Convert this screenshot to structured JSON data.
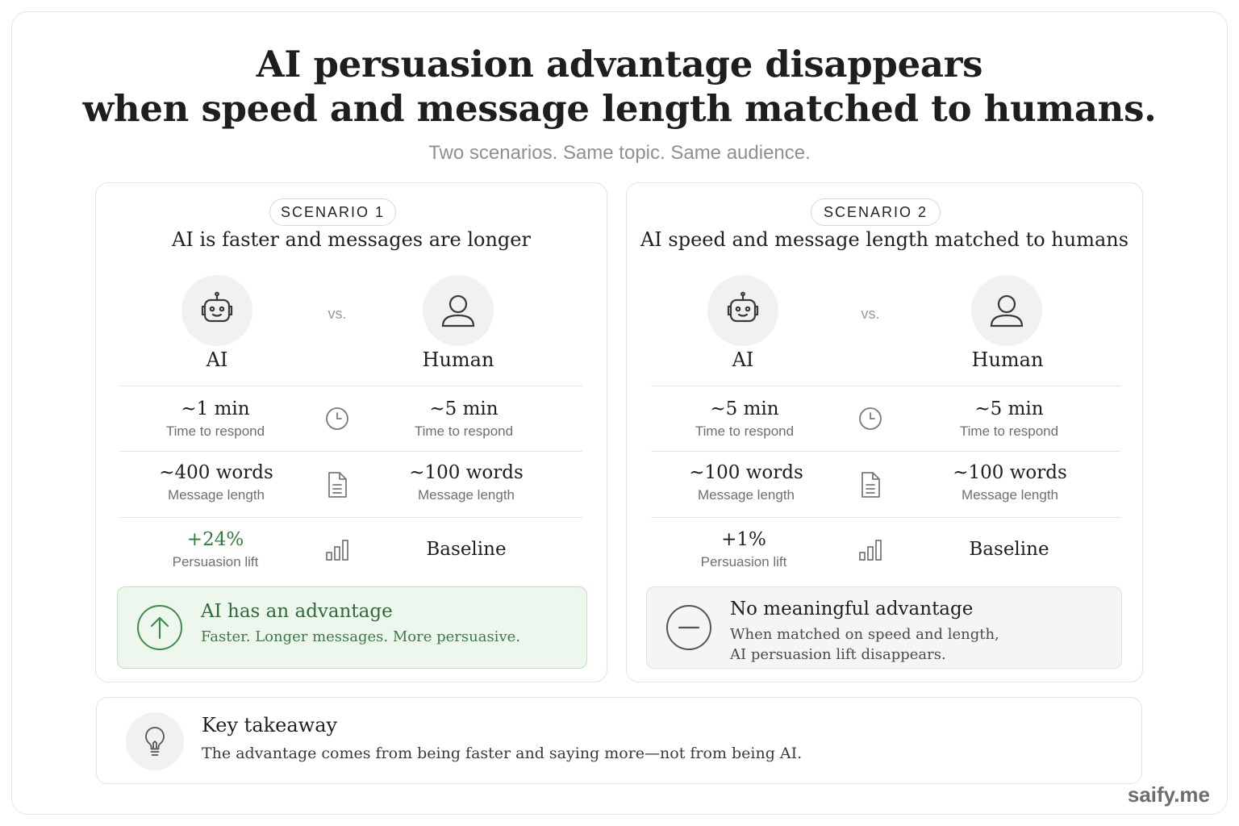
{
  "title": {
    "line1": "AI persuasion advantage disappears",
    "line2": "when speed and message length matched to humans."
  },
  "subtitle": "Two scenarios. Same topic. Same audience.",
  "vs_label": "vs.",
  "scenario1": {
    "tag": "SCENARIO 1",
    "title": "AI is faster and messages are longer",
    "left_role": "AI",
    "right_role": "Human",
    "rows": [
      {
        "left_value": "~1 min",
        "left_label": "Time to respond",
        "right_value": "~5 min",
        "right_label": "Time to respond",
        "icon": "clock-icon"
      },
      {
        "left_value": "~400 words",
        "left_label": "Message length",
        "right_value": "~100 words",
        "right_label": "Message length",
        "icon": "document-icon"
      },
      {
        "left_value": "+24%",
        "left_label": "Persuasion lift",
        "right_value": "Baseline",
        "icon": "bar-chart-icon"
      }
    ],
    "verdict": {
      "heading": "AI has an advantage",
      "text": "Faster. Longer messages. More persuasive.",
      "icon": "arrow-up-circle-icon",
      "accent": "#2e7d3a"
    }
  },
  "scenario2": {
    "tag": "SCENARIO 2",
    "title": "AI speed and message length matched to humans",
    "left_role": "AI",
    "right_role": "Human",
    "rows": [
      {
        "left_value": "~5 min",
        "left_label": "Time to respond",
        "right_value": "~5 min",
        "right_label": "Time to respond",
        "icon": "clock-icon"
      },
      {
        "left_value": "~100 words",
        "left_label": "Message length",
        "right_value": "~100 words",
        "right_label": "Message length",
        "icon": "document-icon"
      },
      {
        "left_value": "+1%",
        "left_label": "Persuasion lift",
        "right_value": "Baseline",
        "icon": "bar-chart-icon"
      }
    ],
    "verdict": {
      "heading": "No meaningful advantage",
      "text_line1": "When matched on speed and length,",
      "text_line2": "AI persuasion lift disappears.",
      "icon": "minus-circle-icon"
    }
  },
  "takeaway": {
    "heading": "Key takeaway",
    "text": "The advantage comes from being faster and saying more—not from being AI.",
    "icon": "lightbulb-icon"
  },
  "brand": "saify.me"
}
